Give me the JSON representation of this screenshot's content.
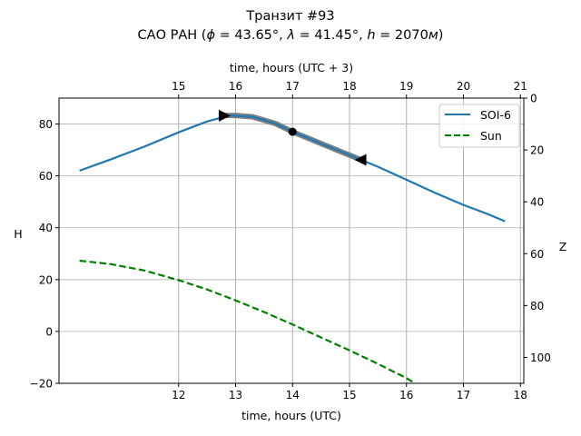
{
  "chart_data": {
    "type": "line",
    "title_line1": "Транзит #93",
    "title_line2_parts": {
      "prefix": "САО РАН (",
      "phi_symbol": "ϕ",
      "phi_value": " = 43.65°, ",
      "lambda_symbol": "λ",
      "lambda_value": " = 41.45°, ",
      "h_symbol": "h",
      "h_value": " = 2070",
      "unit": "м",
      "suffix": ")"
    },
    "xlabel": "time, hours (UTC)",
    "xlabel_top": "time, hours (UTC + 3)",
    "ylabel": "H",
    "ylabel_right": "Z",
    "xlim": [
      9.9,
      18.06
    ],
    "ylim": [
      -20,
      90
    ],
    "xticks": [
      12,
      13,
      14,
      15,
      16,
      17,
      18
    ],
    "xticks_top": [
      15,
      16,
      17,
      18,
      19,
      20,
      21
    ],
    "top_axis_offset_hours": 3,
    "yticks": [
      -20,
      0,
      20,
      40,
      60,
      80
    ],
    "yticks_right": [
      0,
      20,
      40,
      60,
      80,
      100
    ],
    "right_axis_relation": "Z = 90 - H",
    "grid": true,
    "legend_position": "top-right",
    "series": [
      {
        "name": "SOI-6",
        "color": "#1f77b4",
        "style": "solid",
        "x": [
          10.26,
          10.8,
          11.4,
          12.0,
          12.5,
          12.9,
          13.3,
          13.7,
          14.0,
          14.5,
          15.0,
          15.5,
          16.0,
          16.5,
          17.0,
          17.4,
          17.73
        ],
        "y": [
          62.0,
          66.3,
          71.3,
          76.8,
          81.0,
          83.3,
          82.8,
          80.2,
          77.0,
          72.5,
          68.0,
          63.5,
          58.5,
          53.5,
          48.8,
          45.5,
          42.5
        ]
      },
      {
        "name": "Sun",
        "color": "#008000",
        "style": "dashed",
        "x": [
          10.26,
          10.8,
          11.4,
          12.0,
          12.5,
          13.0,
          13.5,
          14.0,
          14.5,
          15.0,
          15.5,
          16.0,
          16.15
        ],
        "y": [
          27.3,
          26.0,
          23.5,
          19.8,
          16.2,
          12.0,
          7.5,
          2.7,
          -2.3,
          -7.3,
          -12.5,
          -18.0,
          -20.0
        ]
      }
    ],
    "observation_window": {
      "color": "#808080",
      "x": [
        12.8,
        13.0,
        13.3,
        13.7,
        14.0,
        14.5,
        15.0,
        15.2
      ],
      "y": [
        83.3,
        83.3,
        82.8,
        80.2,
        77.0,
        72.5,
        68.0,
        66.2
      ],
      "start_marker": {
        "x": 12.8,
        "y": 83.2,
        "shape": "triangle-right"
      },
      "end_marker": {
        "x": 15.2,
        "y": 66.2,
        "shape": "triangle-left"
      },
      "mid_marker": {
        "x": 14.0,
        "y": 77.0,
        "shape": "circle"
      }
    }
  }
}
